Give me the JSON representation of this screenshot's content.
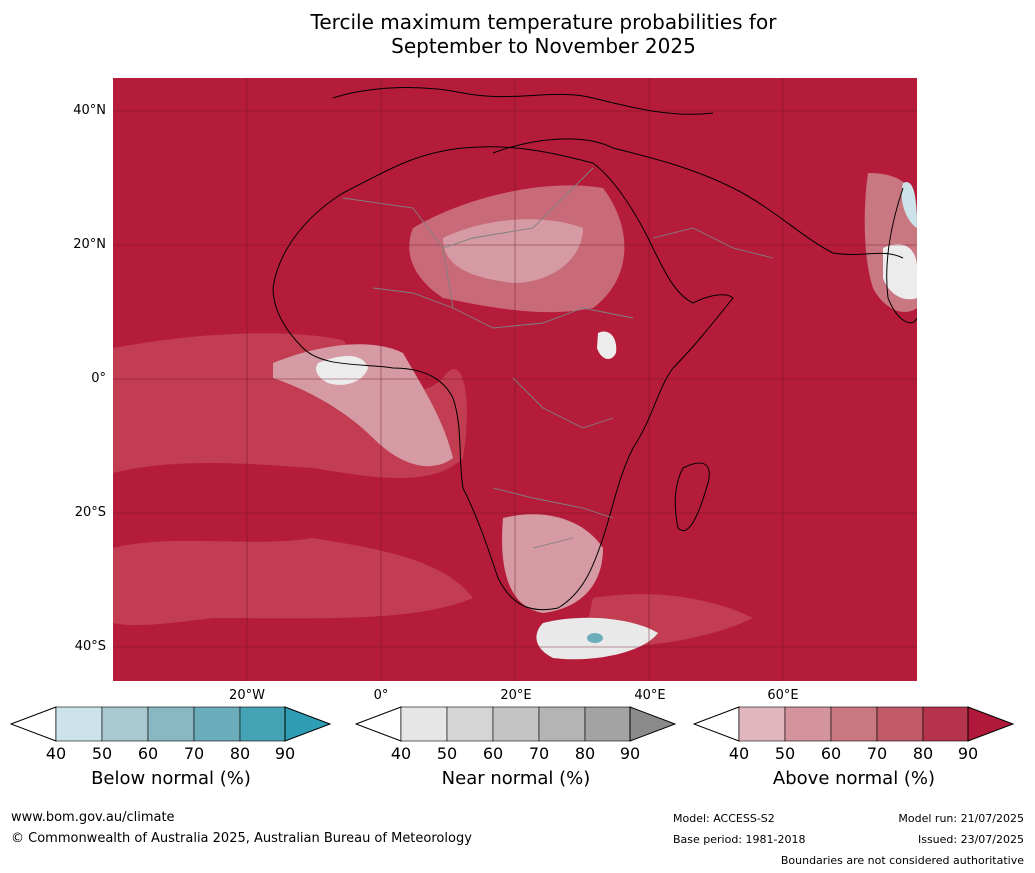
{
  "title": {
    "line1": "Tercile maximum temperature probabilities for",
    "line2": "September to November 2025"
  },
  "map": {
    "lat_labels": [
      "40°N",
      "20°N",
      "0°",
      "20°S",
      "40°S"
    ],
    "lon_labels": [
      "20°W",
      "0°",
      "20°E",
      "40°E",
      "60°E"
    ],
    "base_color": "#b51c3a"
  },
  "colorbars": [
    {
      "label": "Below normal (%)",
      "ticks": [
        "40",
        "50",
        "60",
        "70",
        "80",
        "90"
      ],
      "colors": [
        "#cde3ea",
        "#a9c8d0",
        "#8ab7c4",
        "#6cadbc",
        "#46a2b5",
        "#2f9db4"
      ]
    },
    {
      "label": "Near normal (%)",
      "ticks": [
        "40",
        "50",
        "60",
        "70",
        "80",
        "90"
      ],
      "colors": [
        "#e6e6e6",
        "#d5d5d5",
        "#c4c4c4",
        "#b4b4b4",
        "#a3a3a3",
        "#8a8a8a"
      ]
    },
    {
      "label": "Above normal (%)",
      "ticks": [
        "40",
        "50",
        "60",
        "70",
        "80",
        "90"
      ],
      "colors": [
        "#e0b7bf",
        "#d4949e",
        "#c97781",
        "#c05a67",
        "#b5344b",
        "#b0193a"
      ]
    }
  ],
  "footer": {
    "website": "www.bom.gov.au/climate",
    "copyright": "© Commonwealth of Australia 2025, Australian Bureau of Meteorology",
    "model": "Model: ACCESS-S2",
    "base_period": "Base period: 1981-2018",
    "model_run": "Model run: 21/07/2025",
    "issued": "Issued: 23/07/2025",
    "disclaimer": "Boundaries are not considered authoritative"
  }
}
